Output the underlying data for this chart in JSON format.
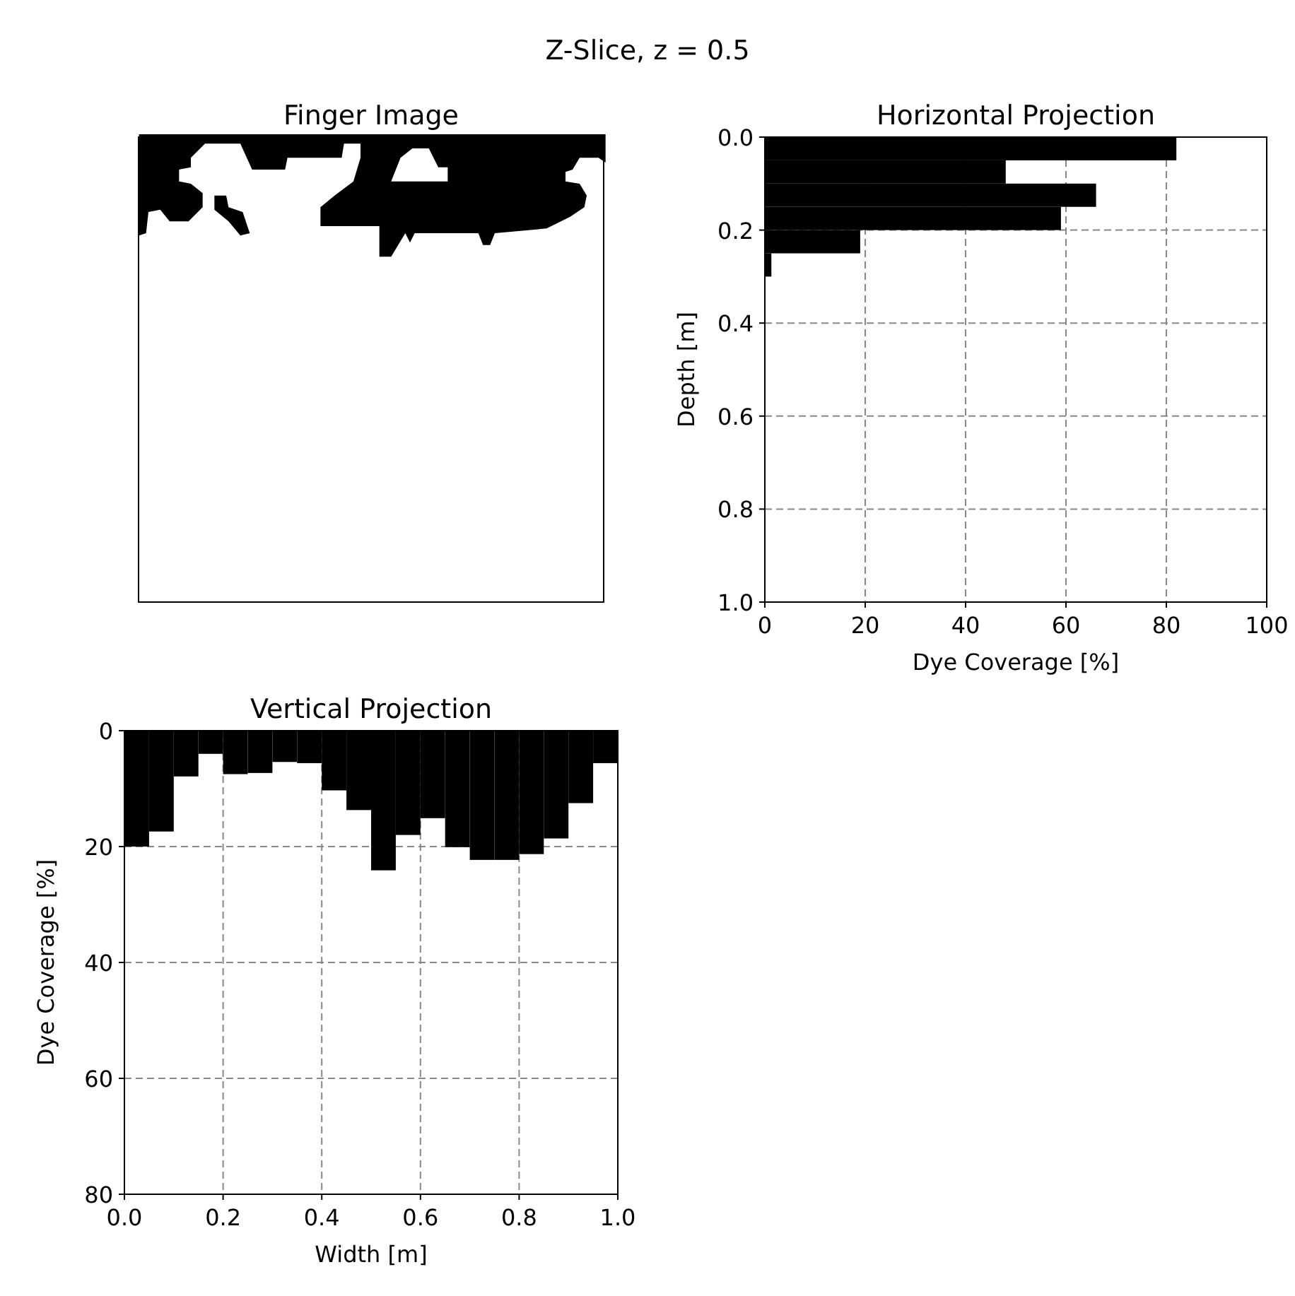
{
  "chart_data": [
    {
      "type": "other",
      "title": "Z-Slice, z = 0.5",
      "subtitle": "Finger Image"
    },
    {
      "type": "histogram",
      "title": "Horizontal Projection",
      "orientation": "horizontal",
      "xlabel": "Dye Coverage [%]",
      "ylabel": "Depth [m]",
      "color": "#000000",
      "grid": true,
      "bins": [
        0,
        0.05,
        0.1,
        0.15,
        0.2,
        0.25,
        0.3,
        0.35,
        0.4,
        0.45,
        0.5,
        0.55,
        0.6,
        0.65,
        0.7,
        0.75,
        0.8,
        0.85,
        0.9,
        0.95,
        1.0
      ],
      "values": [
        82,
        48,
        66,
        59,
        19,
        1.3,
        0,
        0,
        0,
        0,
        0,
        0,
        0,
        0,
        0,
        0,
        0,
        0,
        0,
        0
      ],
      "xlim": [
        0,
        100
      ],
      "xticks": [
        0,
        20,
        40,
        60,
        80,
        100
      ],
      "ylim": [
        1,
        0
      ],
      "yticks": [
        {
          "value": 0,
          "label": "0.0"
        },
        {
          "value": 0.2,
          "label": "0.2"
        },
        {
          "value": 0.4,
          "label": "0.4"
        },
        {
          "value": 0.6,
          "label": "0.6"
        },
        {
          "value": 0.8,
          "label": "0.8"
        },
        {
          "value": 1,
          "label": "1.0"
        }
      ]
    },
    {
      "type": "histogram",
      "title": "Vertical Projection",
      "xlabel": "Width [m]",
      "ylabel": "Dye Coverage [%]",
      "color": "#000000",
      "grid": true,
      "bins": [
        0,
        0.05,
        0.1,
        0.15,
        0.2,
        0.25,
        0.3,
        0.35,
        0.4,
        0.45,
        0.5,
        0.55,
        0.6,
        0.65,
        0.7,
        0.75,
        0.8,
        0.85,
        0.9,
        0.95,
        1.0
      ],
      "values": [
        20,
        17.4,
        7.9,
        4,
        7.5,
        7.3,
        5.4,
        5.6,
        10.3,
        13.7,
        24.1,
        18,
        15.1,
        20.1,
        22.3,
        22.3,
        21.3,
        18.6,
        12.5,
        5.6
      ],
      "xlim": [
        0,
        1
      ],
      "xticks": [
        {
          "value": 0,
          "label": "0.0"
        },
        {
          "value": 0.2,
          "label": "0.2"
        },
        {
          "value": 0.4,
          "label": "0.4"
        },
        {
          "value": 0.6,
          "label": "0.6"
        },
        {
          "value": 0.8,
          "label": "0.8"
        },
        {
          "value": 1,
          "label": "1.0"
        }
      ],
      "ylim": [
        80,
        0
      ],
      "yticks": [
        0,
        20,
        40,
        60,
        80
      ]
    }
  ]
}
